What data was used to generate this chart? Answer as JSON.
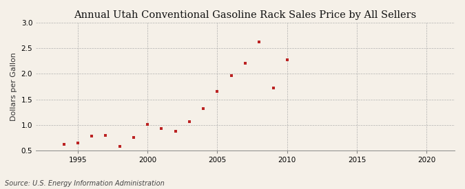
{
  "title": "Annual Utah Conventional Gasoline Rack Sales Price by All Sellers",
  "ylabel": "Dollars per Gallon",
  "source": "Source: U.S. Energy Information Administration",
  "fig_facecolor": "#f5f0e8",
  "ax_facecolor": "#f5f0e8",
  "marker_color": "#bb2222",
  "years": [
    1994,
    1995,
    1996,
    1997,
    1998,
    1999,
    2000,
    2001,
    2002,
    2003,
    2004,
    2005,
    2006,
    2007,
    2008,
    2009,
    2010
  ],
  "values": [
    0.62,
    0.65,
    0.78,
    0.8,
    0.58,
    0.75,
    1.01,
    0.93,
    0.88,
    1.06,
    1.32,
    1.65,
    1.97,
    2.2,
    2.62,
    1.72,
    2.27
  ],
  "xlim": [
    1992,
    2022
  ],
  "ylim": [
    0.5,
    3.0
  ],
  "xticks": [
    1995,
    2000,
    2005,
    2010,
    2015,
    2020
  ],
  "yticks": [
    0.5,
    1.0,
    1.5,
    2.0,
    2.5,
    3.0
  ],
  "title_fontsize": 10.5,
  "label_fontsize": 8,
  "tick_fontsize": 7.5,
  "source_fontsize": 7
}
